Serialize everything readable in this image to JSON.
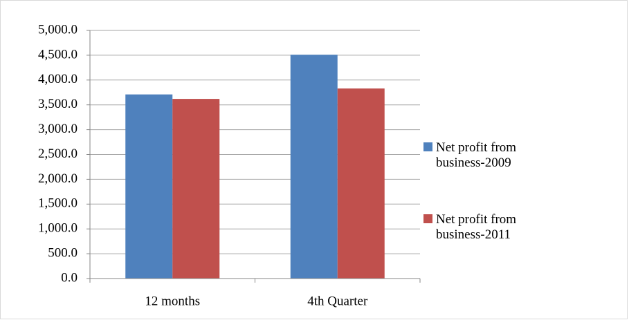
{
  "chart_data": {
    "type": "bar",
    "categories": [
      "12 months",
      "4th Quarter"
    ],
    "series": [
      {
        "name": "Net profit from business-2009",
        "color": "#4f81bd",
        "values": [
          3710,
          4510
        ]
      },
      {
        "name": "Net profit from business-2011",
        "color": "#c0504d",
        "values": [
          3620,
          3830
        ]
      }
    ],
    "ylim": [
      0,
      5000
    ],
    "yticks": [
      {
        "value": 0,
        "label": "0.0"
      },
      {
        "value": 500,
        "label": "500.0"
      },
      {
        "value": 1000,
        "label": "1,000.0"
      },
      {
        "value": 1500,
        "label": "1,500.0"
      },
      {
        "value": 2000,
        "label": "2,000.0"
      },
      {
        "value": 2500,
        "label": "2,500.0"
      },
      {
        "value": 3000,
        "label": "3,000.0"
      },
      {
        "value": 3500,
        "label": "3,500.0"
      },
      {
        "value": 4000,
        "label": "4,000.0"
      },
      {
        "value": 4500,
        "label": "4,500.0"
      },
      {
        "value": 5000,
        "label": "5,000.0"
      }
    ],
    "grid": true,
    "legend": "right"
  }
}
